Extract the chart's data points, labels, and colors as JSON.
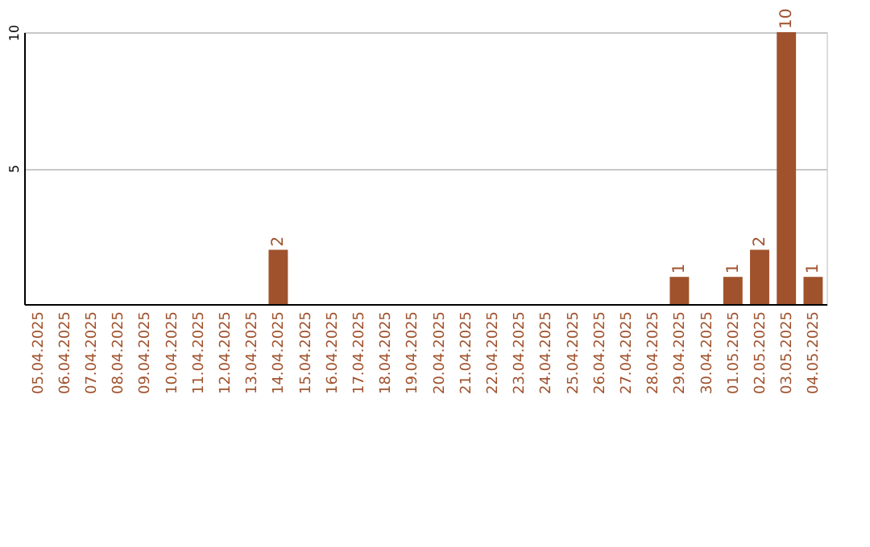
{
  "chart_data": {
    "type": "bar",
    "categories": [
      "05.04.2025",
      "06.04.2025",
      "07.04.2025",
      "08.04.2025",
      "09.04.2025",
      "10.04.2025",
      "11.04.2025",
      "12.04.2025",
      "13.04.2025",
      "14.04.2025",
      "15.04.2025",
      "16.04.2025",
      "17.04.2025",
      "18.04.2025",
      "19.04.2025",
      "20.04.2025",
      "21.04.2025",
      "22.04.2025",
      "23.04.2025",
      "24.04.2025",
      "25.04.2025",
      "26.04.2025",
      "27.04.2025",
      "28.04.2025",
      "29.04.2025",
      "30.04.2025",
      "01.05.2025",
      "02.05.2025",
      "03.05.2025",
      "04.05.2025"
    ],
    "values": [
      0,
      0,
      0,
      0,
      0,
      0,
      0,
      0,
      0,
      2,
      0,
      0,
      0,
      0,
      0,
      0,
      0,
      0,
      0,
      0,
      0,
      0,
      0,
      0,
      1,
      0,
      1,
      2,
      10,
      1
    ],
    "value_labels": [
      null,
      null,
      null,
      null,
      null,
      null,
      null,
      null,
      null,
      "2",
      null,
      null,
      null,
      null,
      null,
      null,
      null,
      null,
      null,
      null,
      null,
      null,
      null,
      null,
      "1",
      null,
      "1",
      "2",
      "10",
      "1"
    ],
    "color": "#a0522d",
    "ylim": [
      0,
      10
    ],
    "yticks": [
      5,
      10
    ],
    "grid": "y"
  }
}
